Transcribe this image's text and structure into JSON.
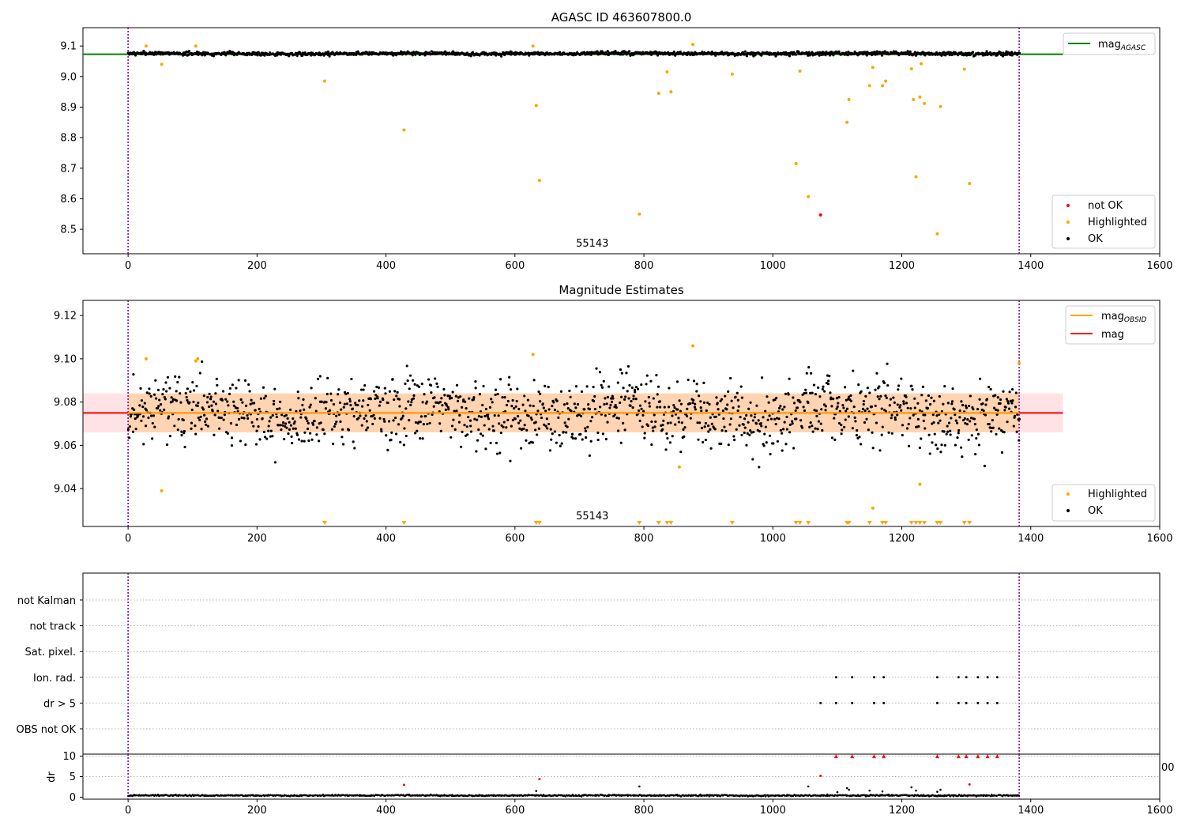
{
  "chart_data": [
    {
      "type": "scatter",
      "title": "AGASC ID 463607800.0",
      "xlim": [
        -70,
        1600
      ],
      "ylim": [
        8.42,
        9.16
      ],
      "xticks": [
        0,
        200,
        400,
        600,
        800,
        1000,
        1200,
        1400,
        1600
      ],
      "yticks": [
        8.5,
        8.6,
        8.7,
        8.8,
        8.9,
        9.0,
        9.1
      ],
      "ytick_labels": [
        "8.5",
        "8.6",
        "8.7",
        "8.8",
        "8.9",
        "9.0",
        "9.1"
      ],
      "vlines": [
        0,
        1382
      ],
      "obsid_label": "55143",
      "obsid_label_x": 720,
      "legend_position": "top-right",
      "legend_entries": [
        {
          "label": "mag",
          "sub": "AGASC",
          "color": "#008000"
        }
      ],
      "legend2_position": "bottom-right",
      "legend2_entries": [
        {
          "label": "not OK",
          "color": "#ff0000"
        },
        {
          "label": "Highlighted",
          "color": "#ffa500"
        },
        {
          "label": "OK",
          "color": "#000000"
        }
      ],
      "agasc_mag": 9.073,
      "ok_band": {
        "center": 9.075,
        "amplitude": 0.009,
        "x_range": [
          0,
          1382
        ],
        "seed": 7
      },
      "highlighted": [
        {
          "x": 28,
          "y": 9.1
        },
        {
          "x": 52,
          "y": 9.04
        },
        {
          "x": 105,
          "y": 9.1
        },
        {
          "x": 305,
          "y": 8.985
        },
        {
          "x": 428,
          "y": 8.825
        },
        {
          "x": 628,
          "y": 9.1
        },
        {
          "x": 633,
          "y": 8.905
        },
        {
          "x": 638,
          "y": 8.66
        },
        {
          "x": 793,
          "y": 8.55
        },
        {
          "x": 823,
          "y": 8.945
        },
        {
          "x": 836,
          "y": 9.015
        },
        {
          "x": 842,
          "y": 8.95
        },
        {
          "x": 876,
          "y": 9.105
        },
        {
          "x": 937,
          "y": 9.008
        },
        {
          "x": 1036,
          "y": 8.715
        },
        {
          "x": 1042,
          "y": 9.018
        },
        {
          "x": 1055,
          "y": 8.607
        },
        {
          "x": 1115,
          "y": 8.85
        },
        {
          "x": 1118,
          "y": 8.925
        },
        {
          "x": 1150,
          "y": 8.97
        },
        {
          "x": 1155,
          "y": 9.03
        },
        {
          "x": 1170,
          "y": 8.97
        },
        {
          "x": 1175,
          "y": 8.985
        },
        {
          "x": 1215,
          "y": 9.025
        },
        {
          "x": 1218,
          "y": 8.925
        },
        {
          "x": 1222,
          "y": 8.672
        },
        {
          "x": 1228,
          "y": 8.933
        },
        {
          "x": 1230,
          "y": 9.042
        },
        {
          "x": 1235,
          "y": 8.912
        },
        {
          "x": 1255,
          "y": 8.485
        },
        {
          "x": 1260,
          "y": 8.902
        },
        {
          "x": 1297,
          "y": 9.024
        },
        {
          "x": 1305,
          "y": 8.65
        }
      ],
      "not_ok": [
        {
          "x": 1074,
          "y": 8.547
        }
      ]
    },
    {
      "type": "scatter",
      "title": "Magnitude Estimates",
      "xlim": [
        -70,
        1600
      ],
      "ylim": [
        9.0225,
        9.127
      ],
      "xticks": [
        0,
        200,
        400,
        600,
        800,
        1000,
        1200,
        1400,
        1600
      ],
      "yticks": [
        9.04,
        9.06,
        9.08,
        9.1,
        9.12
      ],
      "ytick_labels": [
        "9.04",
        "9.06",
        "9.08",
        "9.10",
        "9.12"
      ],
      "vlines": [
        0,
        1382
      ],
      "obsid_label": "55143",
      "obsid_label_x": 720,
      "legend_position": "top-right",
      "legend_entries": [
        {
          "label": "mag",
          "sub": "OBSID",
          "color": "#ffa500"
        },
        {
          "label": "mag",
          "sub": "",
          "color": "#ff0000"
        }
      ],
      "legend2_position": "bottom-right",
      "legend2_entries": [
        {
          "label": "Highlighted",
          "color": "#ffa500"
        },
        {
          "label": "OK",
          "color": "#000000"
        }
      ],
      "mag": 9.075,
      "mag_band": [
        9.066,
        9.084
      ],
      "mag_obsid": 9.075,
      "mag_obsid_band": [
        9.066,
        9.084
      ],
      "ok_band": {
        "center": 9.075,
        "amplitude": 0.024,
        "x_range": [
          0,
          1382
        ],
        "seed": 11
      },
      "highlighted": [
        {
          "x": 28,
          "y": 9.1
        },
        {
          "x": 52,
          "y": 9.039
        },
        {
          "x": 105,
          "y": 9.099
        },
        {
          "x": 108,
          "y": 9.1
        },
        {
          "x": 628,
          "y": 9.102
        },
        {
          "x": 876,
          "y": 9.106
        },
        {
          "x": 855,
          "y": 9.05
        },
        {
          "x": 1155,
          "y": 9.031
        },
        {
          "x": 1228,
          "y": 9.042
        },
        {
          "x": 1382,
          "y": 9.098
        }
      ],
      "below_markers_x": [
        305,
        428,
        633,
        638,
        793,
        823,
        836,
        842,
        937,
        1036,
        1042,
        1055,
        1115,
        1118,
        1150,
        1170,
        1175,
        1215,
        1222,
        1228,
        1235,
        1255,
        1260,
        1297,
        1305
      ]
    },
    {
      "type": "scatter",
      "xlim": [
        -70,
        1600
      ],
      "xticks": [
        0,
        200,
        400,
        600,
        800,
        1000,
        1200,
        1400,
        1600
      ],
      "vlines": [
        0,
        1382
      ],
      "flag_rows": [
        "not Kalman",
        "not track",
        "Sat. pixel.",
        "Ion. rad.",
        "dr > 5",
        "OBS not OK"
      ],
      "flags": {
        "Ion. rad.": [
          1098,
          1123,
          1157,
          1172,
          1255,
          1288,
          1300,
          1318,
          1333,
          1348
        ],
        "dr > 5": [
          1074,
          1098,
          1123,
          1157,
          1172,
          1255,
          1288,
          1300,
          1318,
          1333,
          1348
        ]
      },
      "dr_ylabel": "dr",
      "dr_ylim": [
        -0.5,
        10.5
      ],
      "dr_yticks": [
        0,
        5,
        10
      ],
      "dr_ytick_labels": [
        "0",
        "5",
        "10"
      ],
      "dr_clip": 10,
      "dr_clipped_x": [
        1098,
        1123,
        1157,
        1172,
        1255,
        1288,
        1300,
        1318,
        1333,
        1348
      ],
      "dr_red": [
        {
          "x": 428,
          "y": 3.0
        },
        {
          "x": 638,
          "y": 4.4
        },
        {
          "x": 1074,
          "y": 5.2
        },
        {
          "x": 1305,
          "y": 3.1
        }
      ],
      "dr_black": [
        {
          "x": 633,
          "y": 1.5
        },
        {
          "x": 793,
          "y": 2.6
        },
        {
          "x": 1055,
          "y": 2.6
        },
        {
          "x": 1115,
          "y": 2.2
        },
        {
          "x": 1118,
          "y": 1.8
        },
        {
          "x": 1150,
          "y": 1.6
        },
        {
          "x": 1170,
          "y": 1.4
        },
        {
          "x": 1215,
          "y": 2.4
        },
        {
          "x": 1222,
          "y": 1.6
        },
        {
          "x": 1255,
          "y": 1.3
        },
        {
          "x": 1260,
          "y": 1.8
        },
        {
          "x": 1100,
          "y": 1.2
        }
      ],
      "dr_base": {
        "center": 0.4,
        "amplitude": 0.25,
        "x_range": [
          0,
          1382
        ],
        "seed": 19
      },
      "stray_label": "00"
    }
  ]
}
